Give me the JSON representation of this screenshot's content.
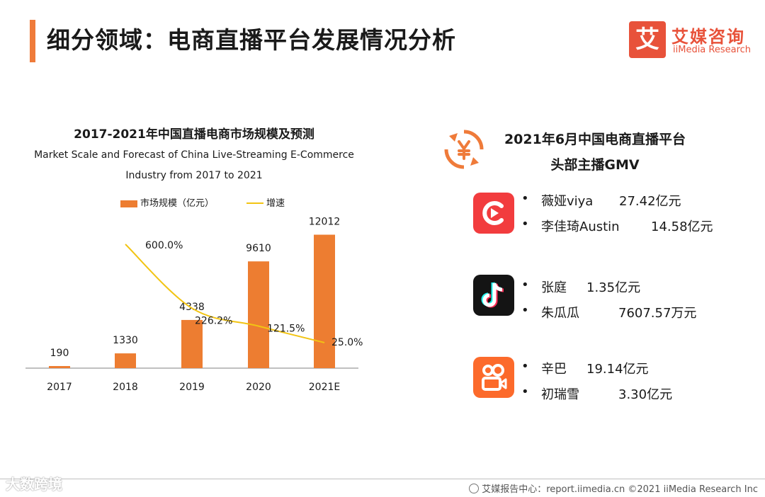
{
  "header": {
    "title": "细分领域：电商直播平台发展情况分析",
    "brand_cn": "艾媒咨询",
    "brand_en": "iiMedia Research",
    "brand_mark": "艾",
    "accent_color": "#ef7b3a"
  },
  "chart_data": {
    "type": "bar",
    "title": "2017-2021年中国直播电商市场规模及预测",
    "subtitle_line1": "Market Scale and Forecast of China Live-Streaming E-Commerce",
    "subtitle_line2": "Industry from 2017 to 2021",
    "categories": [
      "2017",
      "2018",
      "2019",
      "2020",
      "2021E"
    ],
    "series": [
      {
        "name": "市场规模（亿元）",
        "type": "bar",
        "color": "#ed7d31",
        "values": [
          190,
          1330,
          4338,
          9610,
          12012
        ],
        "labels": [
          "190",
          "1330",
          "4338",
          "9610",
          "12012"
        ]
      },
      {
        "name": "增速",
        "type": "line",
        "color": "#f2c413",
        "values": [
          null,
          600.0,
          226.2,
          121.5,
          25.0
        ],
        "labels": [
          "",
          "600.0%",
          "226.2%",
          "121.5%",
          "25.0%"
        ]
      }
    ],
    "ylim": [
      0,
      13000
    ],
    "y2lim": [
      0,
      700
    ],
    "grid": false,
    "legend": "top"
  },
  "gmv": {
    "title_line1": "2021年6月中国电商直播平台",
    "title_line2": "头部主播GMV",
    "icon": "yuan-exchange-icon",
    "bullet": "•",
    "platforms": [
      {
        "logo": "kuaishou-red-logo",
        "entries": [
          {
            "name": "薇娅viya",
            "value": "27.42亿元"
          },
          {
            "name": "李佳琦Austin",
            "value": "14.58亿元"
          }
        ]
      },
      {
        "logo": "douyin-logo",
        "entries": [
          {
            "name": "张庭",
            "value": "1.35亿元"
          },
          {
            "name": "朱瓜瓜",
            "value": "7607.57万元"
          }
        ]
      },
      {
        "logo": "kuaishou-logo",
        "entries": [
          {
            "name": "辛巴",
            "value": "19.14亿元"
          },
          {
            "name": "初瑞雪",
            "value": "3.30亿元"
          }
        ]
      }
    ]
  },
  "footer": {
    "text": "艾媒报告中心：report.iimedia.cn  ©2021  iiMedia Research  Inc",
    "watermark": "大数跨境"
  }
}
